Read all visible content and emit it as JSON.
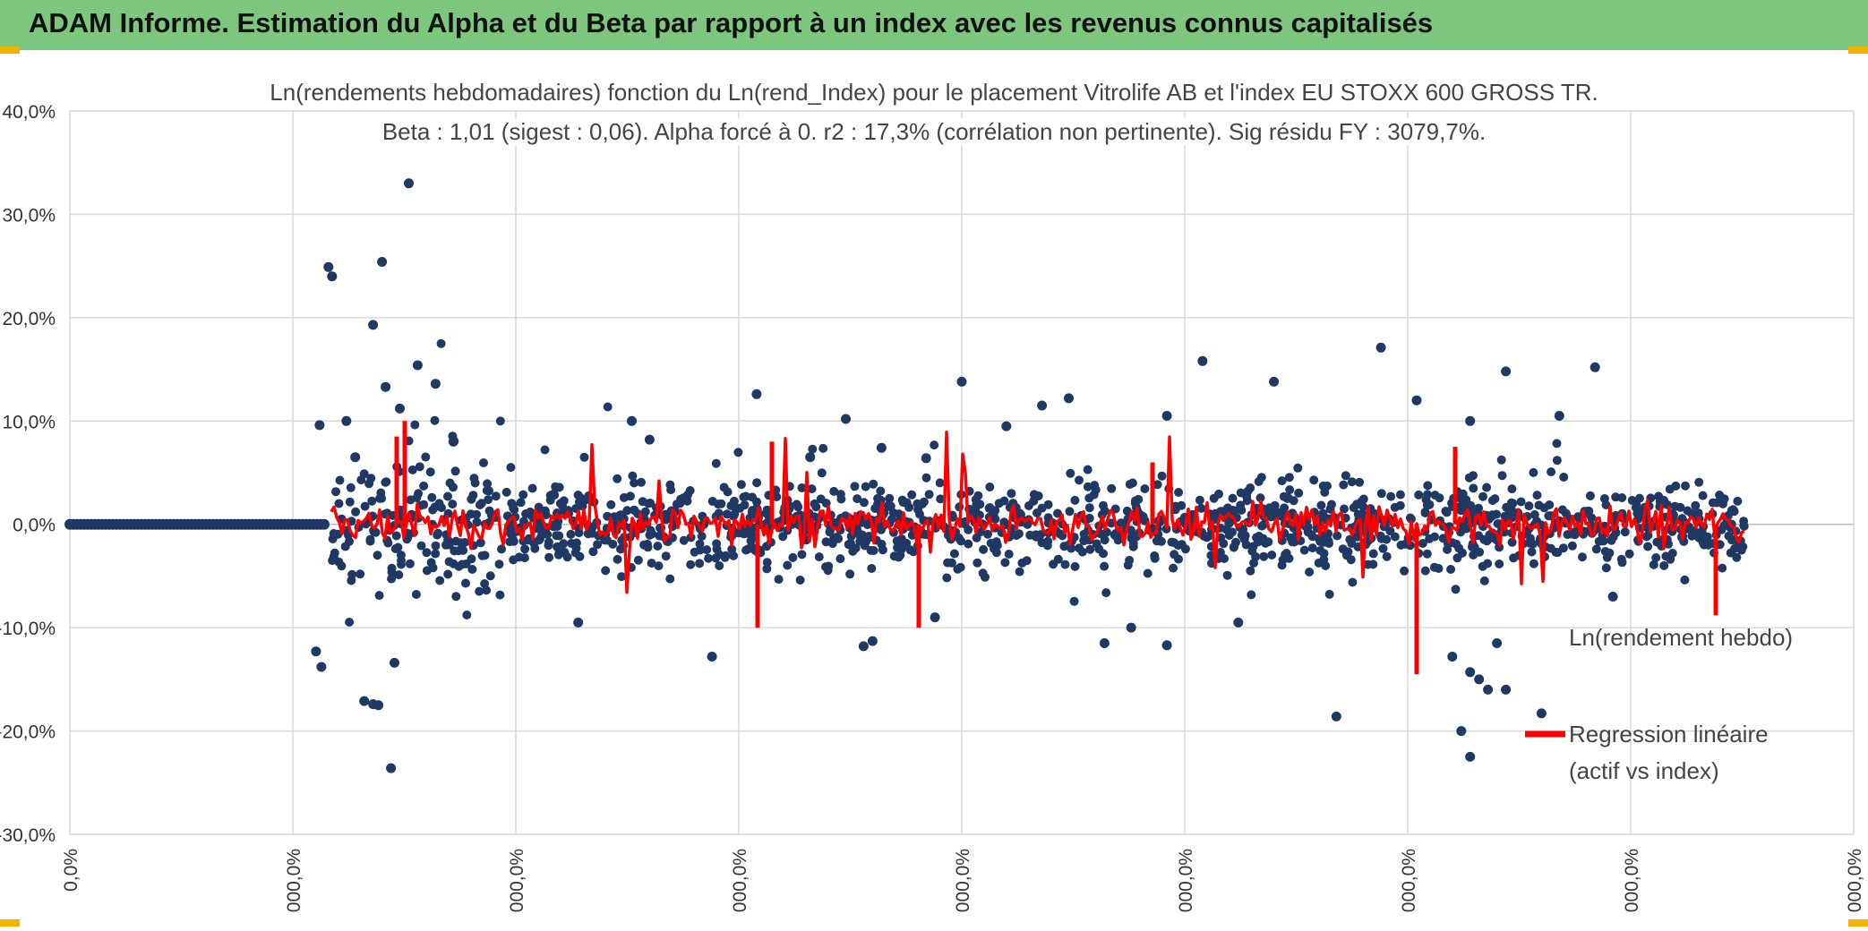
{
  "header": {
    "title": "ADAM Informe. Estimation du Alpha et du Beta par rapport à un index avec les revenus connus capitalisés"
  },
  "colors": {
    "banner": "#7dc67e",
    "scatter": "#203864",
    "regression": "#ff0000",
    "grid": "#d9d9d9",
    "accent": "#f0b400"
  },
  "chart_data": {
    "type": "scatter",
    "title": "Ln(rendements hebdomadaires) fonction du Ln(rend_Index) pour le placement Vitrolife AB et l'index EU STOXX 600 GROSS TR.",
    "subtitle": "Beta : 1,01 (sigest : 0,06). Alpha forcé à 0. r2 : 17,3% (corrélation non pertinente). Sig résidu FY : 3079,7%.",
    "xlabel": "",
    "ylabel": "",
    "ylim": [
      -0.3,
      0.4
    ],
    "y_ticks": [
      "40,0%",
      "30,0%",
      "20,0%",
      "10,0%",
      "0,0%",
      "-10,0%",
      "-20,0%",
      "-30,0%"
    ],
    "x_ticks": [
      "0,0%",
      "000,0%",
      "000,0%",
      "000,0%",
      "000,0%",
      "000,0%",
      "000,0%",
      "000,0%",
      "000,0%"
    ],
    "grid": true,
    "legend_position": "right",
    "series": [
      {
        "name": "Ln(rendement hebdo)",
        "type": "scatter",
        "color": "#203864",
        "note_values": "dense weekly returns between about -24% and +33%, zero flat segment at start",
        "values": [
          [
            0.085,
            0.0
          ],
          [
            0.1,
            0.0
          ],
          [
            0.12,
            0.0
          ],
          [
            0.14,
            0.0
          ],
          [
            0.155,
            0.0
          ],
          [
            0.185,
            0.096
          ],
          [
            0.19,
            0.249
          ],
          [
            0.192,
            0.24
          ],
          [
            0.2,
            0.1
          ],
          [
            0.205,
            0.065
          ],
          [
            0.215,
            0.193
          ],
          [
            0.22,
            0.254
          ],
          [
            0.222,
            0.133
          ],
          [
            0.225,
            -0.236
          ],
          [
            0.23,
            0.112
          ],
          [
            0.235,
            0.33
          ],
          [
            0.24,
            0.154
          ],
          [
            0.25,
            0.136
          ],
          [
            0.26,
            0.08
          ],
          [
            0.215,
            -0.174
          ],
          [
            0.218,
            -0.175
          ],
          [
            0.21,
            -0.171
          ],
          [
            0.183,
            -0.123
          ],
          [
            0.186,
            -0.138
          ],
          [
            0.227,
            -0.134
          ],
          [
            0.36,
            0.1
          ],
          [
            0.37,
            0.082
          ],
          [
            0.43,
            0.126
          ],
          [
            0.46,
            0.065
          ],
          [
            0.48,
            0.102
          ],
          [
            0.5,
            0.074
          ],
          [
            0.525,
            0.064
          ],
          [
            0.545,
            0.138
          ],
          [
            0.57,
            0.095
          ],
          [
            0.59,
            0.115
          ],
          [
            0.605,
            0.122
          ],
          [
            0.66,
            0.105
          ],
          [
            0.68,
            0.158
          ],
          [
            0.72,
            0.138
          ],
          [
            0.78,
            0.171
          ],
          [
            0.8,
            0.12
          ],
          [
            0.83,
            0.1
          ],
          [
            0.88,
            0.105
          ],
          [
            0.9,
            0.152
          ],
          [
            0.85,
            0.148
          ],
          [
            0.405,
            -0.128
          ],
          [
            0.33,
            -0.095
          ],
          [
            0.49,
            -0.118
          ],
          [
            0.495,
            -0.113
          ],
          [
            0.53,
            -0.09
          ],
          [
            0.625,
            -0.115
          ],
          [
            0.64,
            -0.1
          ],
          [
            0.66,
            -0.117
          ],
          [
            0.7,
            -0.095
          ],
          [
            0.755,
            -0.186
          ],
          [
            0.82,
            -0.128
          ],
          [
            0.825,
            -0.2
          ],
          [
            0.83,
            -0.225
          ],
          [
            0.84,
            -0.16
          ],
          [
            0.845,
            -0.115
          ],
          [
            0.83,
            -0.143
          ],
          [
            0.835,
            -0.15
          ],
          [
            0.85,
            -0.16
          ],
          [
            0.87,
            -0.183
          ],
          [
            0.91,
            -0.07
          ]
        ]
      },
      {
        "name": "Regression linéaire\n(actif vs index)",
        "type": "line",
        "color": "#ff0000",
        "beta": 1.01,
        "alpha": 0.0
      }
    ]
  },
  "legend": {
    "scatter_label": "Ln(rendement hebdo)",
    "line_label_1": "Regression linéaire",
    "line_label_2": "(actif vs index)"
  }
}
